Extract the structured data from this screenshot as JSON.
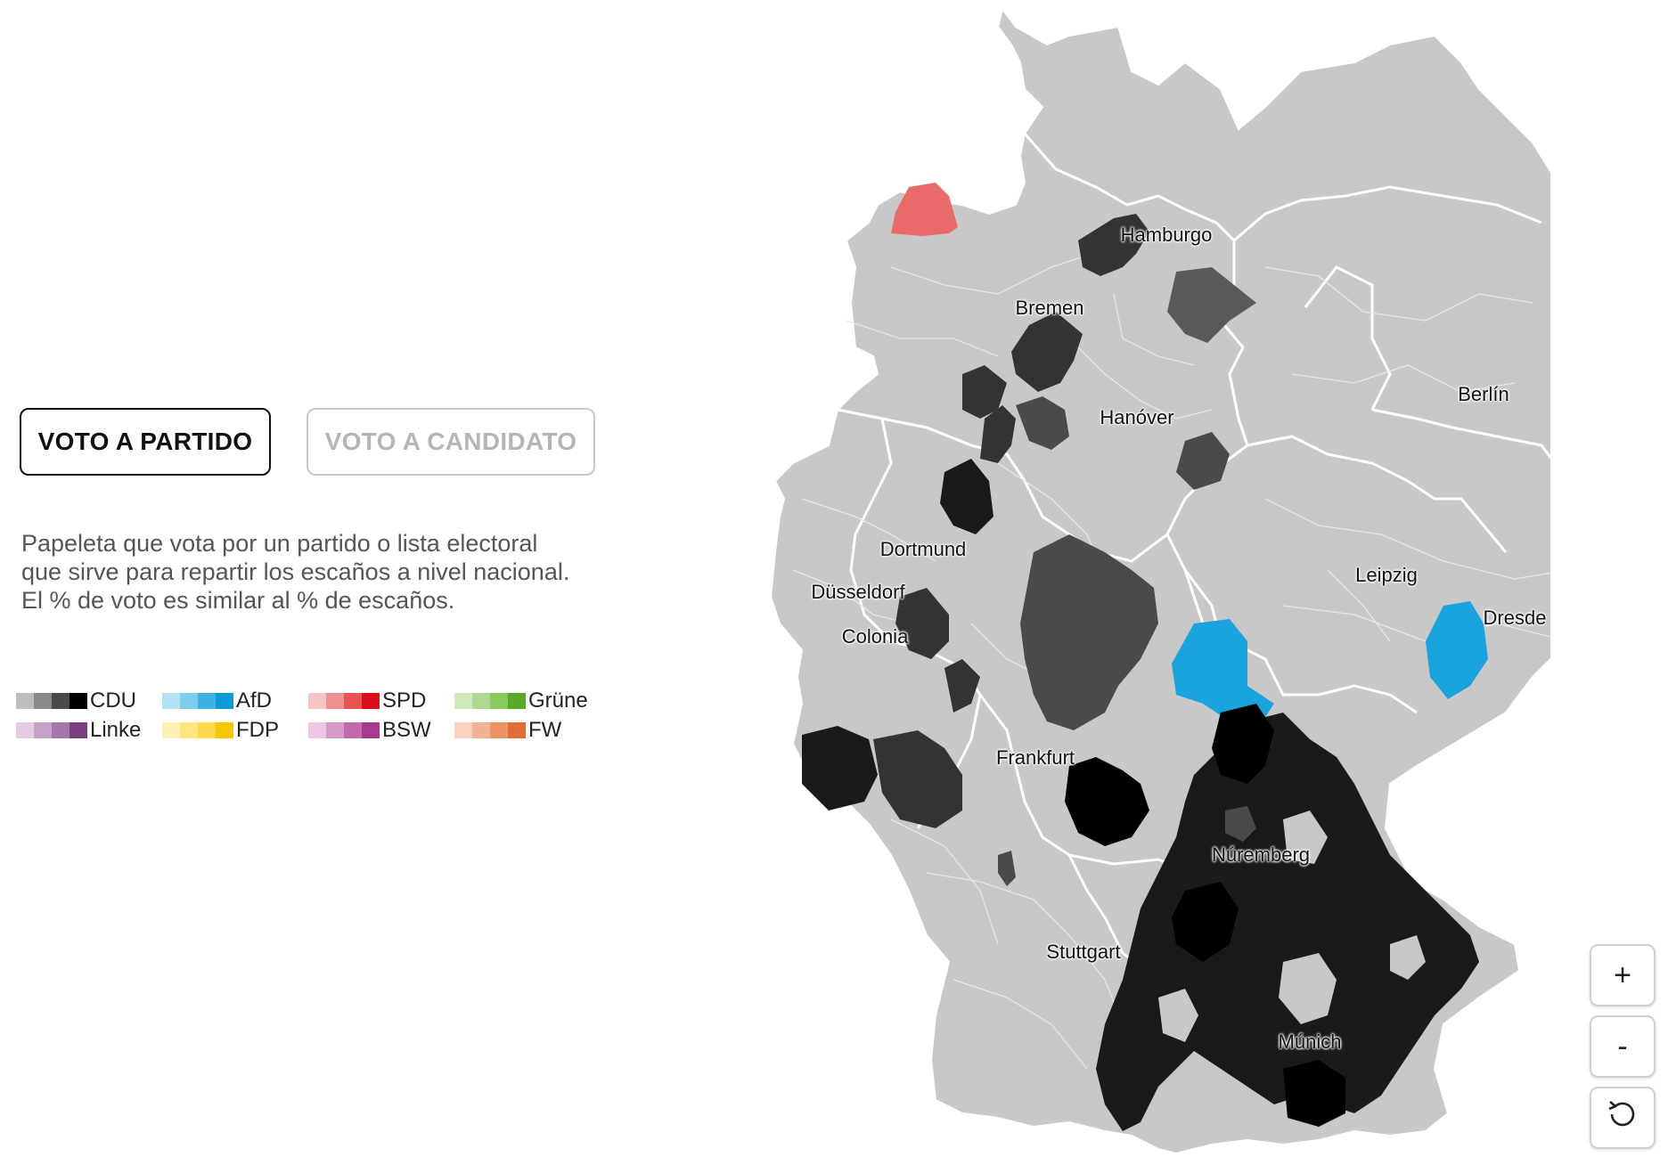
{
  "toggle": {
    "party_label": "VOTO A PARTIDO",
    "candidate_label": "VOTO A CANDIDATO",
    "active": "party"
  },
  "description": {
    "line1": "Papeleta que vota por un partido o lista electoral",
    "line2": "que sirve para repartir los escaños a nivel nacional.",
    "line3": "El % de voto es similar al % de escaños."
  },
  "legend": [
    {
      "party": "CDU",
      "colors": [
        "#bdbdbd",
        "#8a8a8a",
        "#4a4a4a",
        "#000000"
      ]
    },
    {
      "party": "AfD",
      "colors": [
        "#b3e2f7",
        "#7fcdee",
        "#3fb2e3",
        "#0a9bd6"
      ]
    },
    {
      "party": "SPD",
      "colors": [
        "#f7c3c3",
        "#ef9090",
        "#e75252",
        "#d9101b"
      ]
    },
    {
      "party": "Grüne",
      "colors": [
        "#cfe8bc",
        "#acd98d",
        "#8ac95e",
        "#5ba92a"
      ]
    },
    {
      "party": "Linke",
      "colors": [
        "#e2cde2",
        "#c8a3c9",
        "#a576a8",
        "#7d3d83"
      ]
    },
    {
      "party": "FDP",
      "colors": [
        "#fff0b3",
        "#ffe680",
        "#ffd84d",
        "#f7c600"
      ]
    },
    {
      "party": "BSW",
      "colors": [
        "#ecc6e2",
        "#d79ac6",
        "#c06aab",
        "#a63a8e"
      ]
    },
    {
      "party": "FW",
      "colors": [
        "#f9d3c0",
        "#f3b293",
        "#ec9266",
        "#e06e34"
      ]
    }
  ],
  "map": {
    "base_color": "#c8c8c8",
    "cities": [
      "Hamburgo",
      "Bremen",
      "Berlín",
      "Hanóver",
      "Dortmund",
      "Düsseldorf",
      "Colonia",
      "Leipzig",
      "Dresde",
      "Frankfurt",
      "Núremberg",
      "Stuttgart",
      "Múnich"
    ]
  },
  "zoom": {
    "in_label": "+",
    "out_label": "-",
    "reset_icon": "reset-icon"
  }
}
